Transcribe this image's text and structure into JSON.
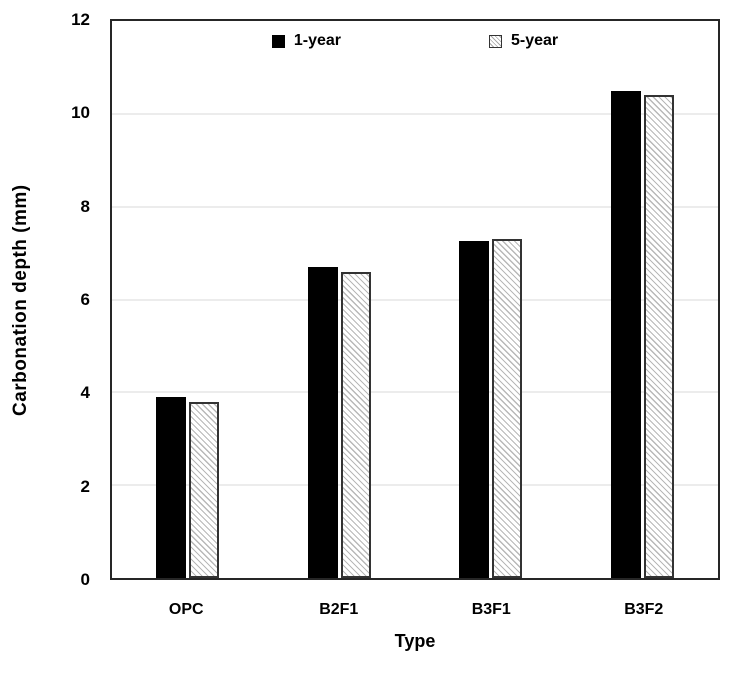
{
  "chart_data": {
    "type": "bar",
    "title": "",
    "xlabel": "Type",
    "ylabel": "Carbonation depth (mm)",
    "categories": [
      "OPC",
      "B2F1",
      "B3F1",
      "B3F2"
    ],
    "series": [
      {
        "name": "1-year",
        "style": "solid-black",
        "values": [
          3.9,
          6.7,
          7.25,
          10.5
        ]
      },
      {
        "name": "5-year",
        "style": "hatched",
        "values": [
          3.8,
          6.6,
          7.3,
          10.4
        ]
      }
    ],
    "ylim": [
      0,
      12
    ],
    "yticks": [
      0,
      2,
      4,
      6,
      8,
      10,
      12
    ],
    "gridlines": [
      2,
      4,
      6,
      8,
      10
    ],
    "grid": "horizontal",
    "legend_position": "top-center-inside",
    "colors": {
      "bar_solid": "#000000",
      "bar_hatch_line": "#b8b8b8",
      "bar_hatch_border": "#333333",
      "gridline": "#d9d9d9",
      "plot_border": "#262626",
      "text": "#000000",
      "background": "#ffffff"
    }
  }
}
